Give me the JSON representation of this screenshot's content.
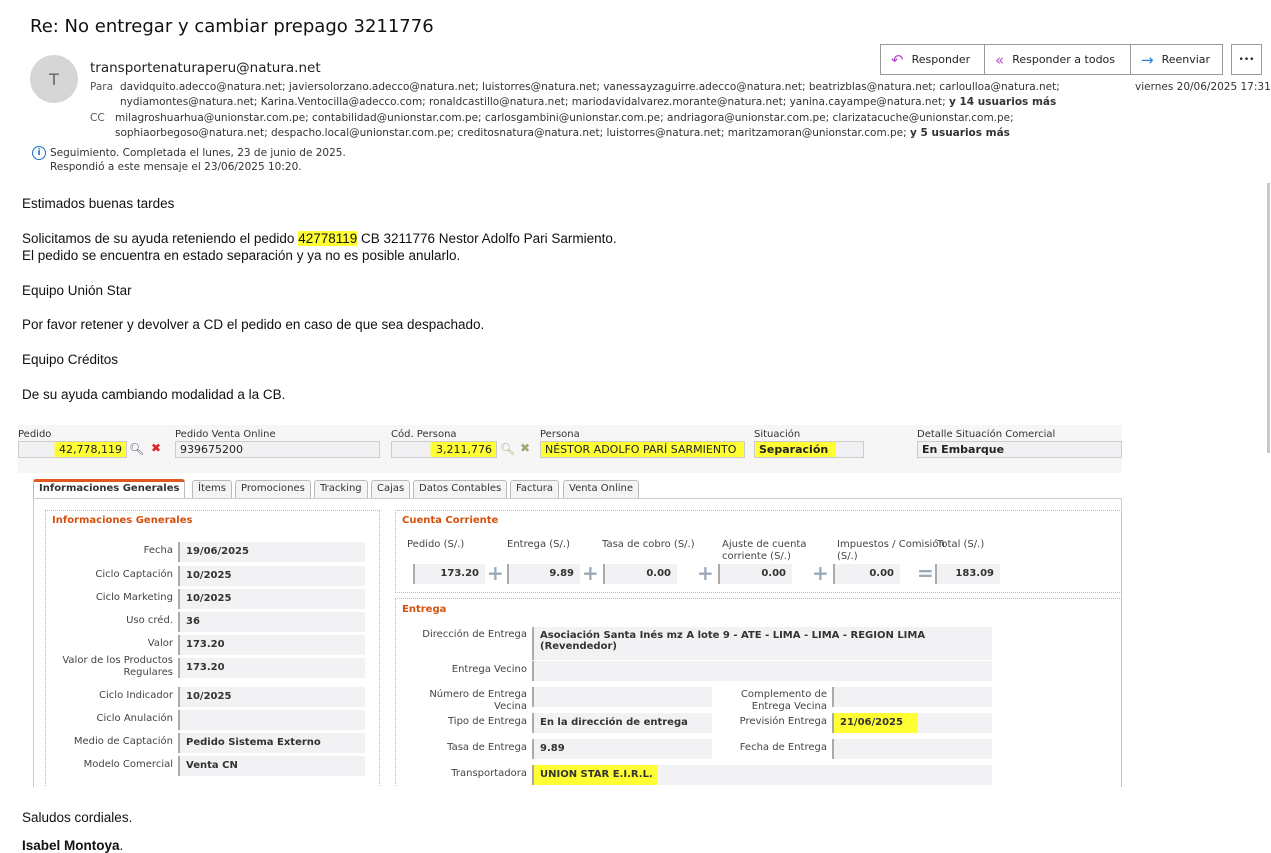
{
  "email": {
    "subject": "Re: No entregar y cambiar prepago 3211776",
    "avatar_letter": "T",
    "sender": "transportenaturaperu@natura.net",
    "to_label": "Para",
    "to_line1": "davidquito.adecco@natura.net; javiersolorzano.adecco@natura.net; luistorres@natura.net; vanessayzaguirre.adecco@natura.net; beatrizblas@natura.net; carloulloa@natura.net;",
    "to_line2": "nydiamontes@natura.net; Karina.Ventocilla@adecco.com; ronaldcastillo@natura.net; mariodavidalvarez.morante@natura.net; yanina.cayampe@natura.net;",
    "to_more": "y 14 usuarios más",
    "cc_label": "CC",
    "cc_line1": "milagroshuarhua@unionstar.com.pe; contabilidad@unionstar.com.pe; carlosgambini@unionstar.com.pe; andriagora@unionstar.com.pe; clarizatacuche@unionstar.com.pe;",
    "cc_line2": "sophiaorbegoso@natura.net; despacho.local@unionstar.com.pe; creditosnatura@natura.net; luistorres@natura.net; maritzamoran@unionstar.com.pe;",
    "cc_more": "y 5 usuarios más",
    "followup": "Seguimiento.  Completada el lunes, 23 de junio de 2025.",
    "replied": "Respondió a este mensaje el 23/06/2025 10:20.",
    "date": "viernes 20/06/2025 17:31",
    "actions": {
      "reply": "Responder",
      "reply_all": "Responder a todos",
      "forward": "Reenviar",
      "more": "•••"
    }
  },
  "body": {
    "greeting": "Estimados buenas tardes",
    "p1_pre": "Solicitamos de su ayuda reteniendo el pedido ",
    "p1_hl": "42778119",
    "p1_post": " CB 3211776 Nestor Adolfo Pari Sarmiento.",
    "p2": "El pedido se encuentra en estado separación y ya no es posible anularlo.",
    "team1": "Equipo Unión Star",
    "p3": "Por favor retener y devolver a CD el pedido en caso de que sea despachado.",
    "team2": "Equipo Créditos",
    "p4": "De su ayuda cambiando modalidad  a la CB.",
    "closing": "Saludos cordiales.",
    "signature": "Isabel Montoya",
    "signature_dot": "."
  },
  "form": {
    "top": [
      {
        "label": "Pedido",
        "value": "42,778,119"
      },
      {
        "label": "Pedido Venta Online",
        "value": "939675200"
      },
      {
        "label": "Cód. Persona",
        "value": "3,211,776"
      },
      {
        "label": "Persona",
        "value": "NÉSTOR ADOLFO PARÍ SARMIENTO"
      },
      {
        "label": "Situación",
        "value": "Separación"
      },
      {
        "label": "Detalle Situación Comercial",
        "value": "En Embarque"
      }
    ],
    "tabs": [
      "Informaciones Generales",
      "Ítems",
      "Promociones",
      "Tracking",
      "Cajas",
      "Datos Contables",
      "Factura",
      "Venta Online"
    ],
    "general": {
      "title": "Informaciones Generales",
      "rows": [
        {
          "label": "Fecha",
          "value": "19/06/2025"
        },
        {
          "label": "Ciclo Captación",
          "value": "10/2025"
        },
        {
          "label": "Ciclo Marketing",
          "value": "10/2025"
        },
        {
          "label": "Uso créd.",
          "value": "36"
        },
        {
          "label": "Valor",
          "value": "173.20"
        },
        {
          "label": "Valor de los Productos Regulares",
          "value": "173.20"
        },
        {
          "label": "Ciclo Indicador",
          "value": "10/2025"
        },
        {
          "label": "Ciclo Anulación",
          "value": ""
        },
        {
          "label": "Medio de Captación",
          "value": "Pedido Sistema Externo"
        },
        {
          "label": "Modelo Comercial",
          "value": "Venta CN"
        }
      ]
    },
    "cuenta": {
      "title": "Cuenta Corriente",
      "cols": [
        {
          "label": "Pedido (S/.)",
          "value": "173.20"
        },
        {
          "label": "Entrega (S/.)",
          "value": "9.89"
        },
        {
          "label": "Tasa de cobro (S/.)",
          "value": "0.00"
        },
        {
          "label": "Ajuste de cuenta corriente (S/.)",
          "value": "0.00"
        },
        {
          "label": "Impuestos / Comisión (S/.)",
          "value": "0.00"
        },
        {
          "label": "Total (S/.)",
          "value": "183.09"
        }
      ]
    },
    "entrega": {
      "title": "Entrega",
      "direccion_label": "Dirección de Entrega",
      "direccion": "Asociación Santa Inés mz A lote 9 - ATE - LIMA - LIMA - REGION LIMA (Revendedor)",
      "vecino_label": "Entrega Vecino",
      "vecino": "",
      "numero_label": "Número de Entrega Vecina",
      "numero": "",
      "complemento_label": "Complemento de Entrega Vecina",
      "complemento": "",
      "tipo_label": "Tipo de Entrega",
      "tipo": "En la dirección de entrega",
      "prevision_label": "Previsión Entrega",
      "prevision": "21/06/2025",
      "tasa_label": "Tasa de Entrega",
      "tasa": "9.89",
      "fecha_label": "Fecha de Entrega",
      "fecha": "",
      "transp_label": "Transportadora",
      "transp": "UNION STAR E.I.R.L."
    }
  },
  "colors": {
    "accent_orange": "#d4500d",
    "highlight": "#ffff33",
    "reply_purple": "#b04ac8",
    "forward_blue": "#2a7fd4"
  }
}
